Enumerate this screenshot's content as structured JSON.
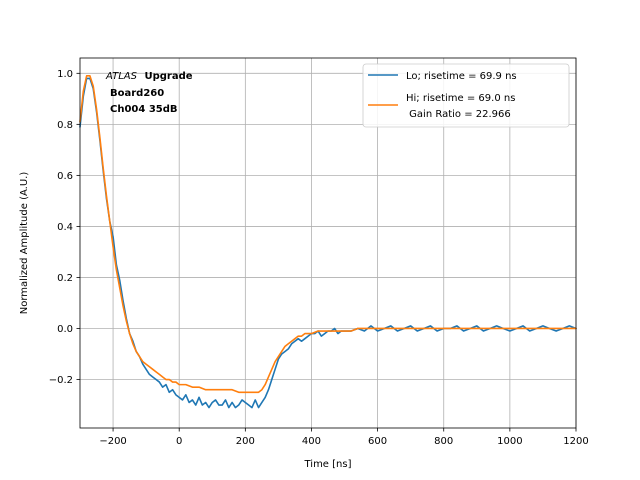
{
  "chart_data": {
    "type": "line",
    "xlabel": "Time [ns]",
    "ylabel": "Normalized Amplitude (A.U.)",
    "xlim": [
      -300,
      1200
    ],
    "ylim": [
      -0.39,
      1.06
    ],
    "xticks": [
      -200,
      0,
      200,
      400,
      600,
      800,
      1000,
      1200
    ],
    "xtick_labels": [
      "−200",
      "0",
      "200",
      "400",
      "600",
      "800",
      "1000",
      "1200"
    ],
    "yticks": [
      -0.2,
      0.0,
      0.2,
      0.4,
      0.6,
      0.8,
      1.0
    ],
    "ytick_labels": [
      "−0.2",
      "0.0",
      "0.2",
      "0.4",
      "0.6",
      "0.8",
      "1.0"
    ],
    "grid": true,
    "legend_position": "top-right",
    "annotation": {
      "atlas": "ATLAS",
      "upgrade": "Upgrade",
      "board": "Board260",
      "channel": "Ch004 35dB"
    },
    "legend": {
      "lo": "Lo; risetime = 69.9 ns",
      "hi_line1": "Hi; risetime = 69.0 ns",
      "hi_line2": " Gain Ratio = 22.966"
    },
    "series": [
      {
        "name": "Lo; risetime = 69.9 ns",
        "color": "#1f77b4",
        "x": [
          -300,
          -290,
          -280,
          -270,
          -260,
          -250,
          -240,
          -230,
          -220,
          -210,
          -200,
          -190,
          -180,
          -170,
          -160,
          -150,
          -140,
          -130,
          -120,
          -110,
          -100,
          -90,
          -80,
          -70,
          -60,
          -50,
          -40,
          -30,
          -20,
          -10,
          0,
          10,
          20,
          30,
          40,
          50,
          60,
          70,
          80,
          90,
          100,
          110,
          120,
          130,
          140,
          150,
          160,
          170,
          180,
          190,
          200,
          210,
          220,
          230,
          240,
          250,
          260,
          270,
          280,
          290,
          300,
          310,
          320,
          330,
          340,
          350,
          360,
          370,
          380,
          390,
          400,
          410,
          420,
          430,
          440,
          450,
          460,
          470,
          480,
          490,
          500,
          520,
          540,
          560,
          580,
          600,
          620,
          640,
          660,
          680,
          700,
          720,
          740,
          760,
          780,
          800,
          820,
          840,
          860,
          880,
          900,
          920,
          940,
          960,
          980,
          1000,
          1020,
          1040,
          1060,
          1080,
          1100,
          1120,
          1140,
          1160,
          1180,
          1200
        ],
        "y": [
          0.79,
          0.91,
          0.98,
          0.98,
          0.94,
          0.85,
          0.74,
          0.62,
          0.51,
          0.42,
          0.36,
          0.25,
          0.19,
          0.11,
          0.04,
          -0.02,
          -0.05,
          -0.09,
          -0.11,
          -0.14,
          -0.16,
          -0.18,
          -0.19,
          -0.2,
          -0.21,
          -0.23,
          -0.22,
          -0.25,
          -0.24,
          -0.26,
          -0.27,
          -0.28,
          -0.26,
          -0.29,
          -0.28,
          -0.3,
          -0.27,
          -0.3,
          -0.29,
          -0.31,
          -0.29,
          -0.28,
          -0.3,
          -0.3,
          -0.28,
          -0.31,
          -0.29,
          -0.31,
          -0.3,
          -0.28,
          -0.29,
          -0.3,
          -0.31,
          -0.28,
          -0.31,
          -0.29,
          -0.27,
          -0.24,
          -0.2,
          -0.16,
          -0.12,
          -0.1,
          -0.09,
          -0.08,
          -0.06,
          -0.05,
          -0.04,
          -0.05,
          -0.04,
          -0.03,
          -0.02,
          -0.02,
          -0.01,
          -0.03,
          -0.02,
          -0.01,
          -0.01,
          0.0,
          -0.02,
          -0.01,
          -0.01,
          -0.01,
          0.0,
          -0.01,
          0.01,
          -0.01,
          0.0,
          0.01,
          -0.01,
          0.0,
          0.01,
          -0.01,
          0.0,
          0.01,
          -0.01,
          0.0,
          0.0,
          0.01,
          -0.01,
          0.0,
          0.01,
          -0.01,
          0.0,
          0.01,
          0.0,
          -0.01,
          0.0,
          0.01,
          -0.01,
          0.0,
          0.01,
          0.0,
          -0.01,
          0.0,
          0.01,
          0.0
        ]
      },
      {
        "name": "Hi; risetime = 69.0 ns",
        "color": "#ff7f0e",
        "x": [
          -300,
          -290,
          -280,
          -270,
          -260,
          -250,
          -240,
          -230,
          -220,
          -210,
          -200,
          -190,
          -180,
          -170,
          -160,
          -150,
          -140,
          -130,
          -120,
          -110,
          -100,
          -90,
          -80,
          -70,
          -60,
          -50,
          -40,
          -30,
          -20,
          -10,
          0,
          20,
          40,
          60,
          80,
          100,
          120,
          140,
          160,
          180,
          200,
          210,
          220,
          230,
          240,
          250,
          260,
          270,
          280,
          290,
          300,
          310,
          320,
          330,
          340,
          350,
          360,
          370,
          380,
          390,
          400,
          420,
          440,
          460,
          480,
          500,
          520,
          540,
          560,
          580,
          600,
          650,
          700,
          750,
          800,
          850,
          900,
          950,
          1000,
          1050,
          1100,
          1150,
          1200
        ],
        "y": [
          0.81,
          0.93,
          0.99,
          0.99,
          0.95,
          0.86,
          0.75,
          0.63,
          0.52,
          0.42,
          0.32,
          0.23,
          0.16,
          0.09,
          0.03,
          -0.02,
          -0.06,
          -0.09,
          -0.11,
          -0.13,
          -0.14,
          -0.15,
          -0.16,
          -0.17,
          -0.18,
          -0.19,
          -0.2,
          -0.2,
          -0.21,
          -0.21,
          -0.22,
          -0.22,
          -0.23,
          -0.23,
          -0.24,
          -0.24,
          -0.24,
          -0.24,
          -0.24,
          -0.25,
          -0.25,
          -0.25,
          -0.25,
          -0.25,
          -0.25,
          -0.24,
          -0.22,
          -0.19,
          -0.16,
          -0.13,
          -0.11,
          -0.09,
          -0.07,
          -0.06,
          -0.05,
          -0.04,
          -0.03,
          -0.03,
          -0.02,
          -0.02,
          -0.02,
          -0.01,
          -0.01,
          -0.01,
          -0.01,
          -0.01,
          -0.01,
          0.0,
          0.0,
          0.0,
          0.0,
          0.0,
          0.0,
          0.0,
          0.0,
          0.0,
          0.0,
          0.0,
          0.0,
          0.0,
          0.0,
          0.0,
          0.0
        ]
      }
    ]
  }
}
